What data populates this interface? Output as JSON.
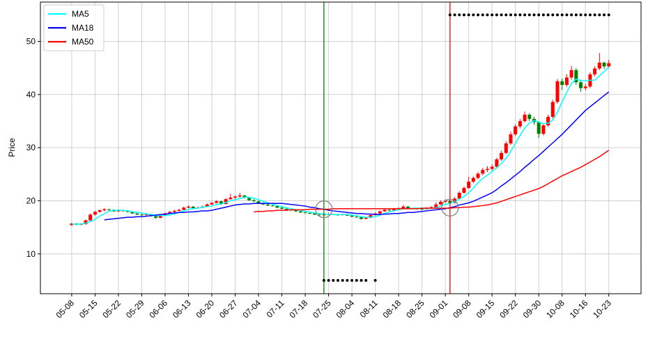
{
  "chart_data": {
    "type": "candlestick",
    "y_label": "Price",
    "ylim": [
      2.5,
      57.4
    ],
    "yticks": [
      10,
      20,
      30,
      40,
      50
    ],
    "xlim": [
      -6.7,
      121.9
    ],
    "grid": true,
    "legend": "upper left",
    "up_color": "#ff0000",
    "down_color": "#008000",
    "categories": [
      "05-08",
      null,
      null,
      null,
      null,
      "05-15",
      null,
      null,
      null,
      null,
      "05-22",
      null,
      null,
      null,
      null,
      "05-29",
      null,
      null,
      null,
      null,
      "06-06",
      null,
      null,
      null,
      null,
      "06-13",
      null,
      null,
      null,
      null,
      "06-20",
      null,
      null,
      null,
      null,
      "06-27",
      null,
      null,
      null,
      null,
      "07-04",
      null,
      null,
      null,
      null,
      "07-11",
      null,
      null,
      null,
      null,
      "07-18",
      null,
      null,
      null,
      null,
      "07-25",
      null,
      null,
      null,
      null,
      "08-04",
      null,
      null,
      null,
      null,
      "08-11",
      null,
      null,
      null,
      null,
      "08-18",
      null,
      null,
      null,
      null,
      "08-25",
      null,
      null,
      null,
      null,
      "09-01",
      null,
      null,
      null,
      null,
      "09-08",
      null,
      null,
      null,
      null,
      "09-15",
      null,
      null,
      null,
      null,
      "09-22",
      null,
      null,
      null,
      null,
      "09-30",
      null,
      null,
      null,
      null,
      "10-08",
      null,
      null,
      null,
      null,
      "10-16",
      null,
      null,
      null,
      null,
      "10-23"
    ],
    "open": [
      15.4,
      15.7,
      15.5,
      15.6,
      16.3,
      17.4,
      17.9,
      18.2,
      18.4,
      18.3,
      18.0,
      18.2,
      18.1,
      17.9,
      17.6,
      17.4,
      17.3,
      17.5,
      17.1,
      16.8,
      17.2,
      17.6,
      17.9,
      18.1,
      18.3,
      18.7,
      18.9,
      18.6,
      18.7,
      18.9,
      19.3,
      19.6,
      19.9,
      19.4,
      20.3,
      20.6,
      20.8,
      21.0,
      20.6,
      20.1,
      19.9,
      19.6,
      19.3,
      19.1,
      19.0,
      18.7,
      18.5,
      18.3,
      18.2,
      18.0,
      17.8,
      17.7,
      17.6,
      17.4,
      17.3,
      17.4,
      17.5,
      17.4,
      17.3,
      17.5,
      17.2,
      17.0,
      16.9,
      16.6,
      16.8,
      17.3,
      17.6,
      18.0,
      18.3,
      18.2,
      18.4,
      18.6,
      18.9,
      18.5,
      18.6,
      18.5,
      18.4,
      18.6,
      18.8,
      19.3,
      19.8,
      20.0,
      19.6,
      20.4,
      21.5,
      22.4,
      23.6,
      24.3,
      25.1,
      25.8,
      26.0,
      26.4,
      27.8,
      29.0,
      30.8,
      32.5,
      34.0,
      35.0,
      36.2,
      35.4,
      34.8,
      32.6,
      34.2,
      35.8,
      38.6,
      42.5,
      41.8,
      43.2,
      44.6,
      42.3,
      41.2,
      41.5,
      43.8,
      44.9,
      46.0,
      45.3
    ],
    "high": [
      15.9,
      15.8,
      15.8,
      16.5,
      17.6,
      18.1,
      18.4,
      18.6,
      18.5,
      18.4,
      18.4,
      18.3,
      18.2,
      18.0,
      17.7,
      17.6,
      17.7,
      17.6,
      17.2,
      17.3,
      17.8,
      18.1,
      18.3,
      18.5,
      18.9,
      19.1,
      19.0,
      18.9,
      19.1,
      19.5,
      19.8,
      20.1,
      20.0,
      20.5,
      21.3,
      21.0,
      21.5,
      21.1,
      20.7,
      20.3,
      20.0,
      19.7,
      19.5,
      19.3,
      19.1,
      18.8,
      18.6,
      18.5,
      18.3,
      18.1,
      17.9,
      17.8,
      17.7,
      17.5,
      17.6,
      17.7,
      17.6,
      17.5,
      17.6,
      17.6,
      17.3,
      17.1,
      17.0,
      17.0,
      17.5,
      17.8,
      18.2,
      18.5,
      18.4,
      18.6,
      18.8,
      19.2,
      19.0,
      18.7,
      18.7,
      18.6,
      18.8,
      19.0,
      19.7,
      20.1,
      20.3,
      20.2,
      20.7,
      21.8,
      22.7,
      24.5,
      24.6,
      25.4,
      26.2,
      26.5,
      26.8,
      28.1,
      29.4,
      31.2,
      33.0,
      34.4,
      35.4,
      36.8,
      36.5,
      35.8,
      35.0,
      34.6,
      36.2,
      39.0,
      42.9,
      43.0,
      43.8,
      45.4,
      45.0,
      42.8,
      42.0,
      44.2,
      45.3,
      47.8,
      46.2,
      46.5
    ],
    "low": [
      15.3,
      15.4,
      15.4,
      15.5,
      16.2,
      17.2,
      17.8,
      18.0,
      18.1,
      17.9,
      17.9,
      17.9,
      17.8,
      17.5,
      17.3,
      17.2,
      17.2,
      17.0,
      16.6,
      16.7,
      17.1,
      17.5,
      17.8,
      18.0,
      18.2,
      18.6,
      18.5,
      18.5,
      18.6,
      18.8,
      19.2,
      19.5,
      19.2,
      19.3,
      20.2,
      20.3,
      20.6,
      20.4,
      20.0,
      19.8,
      19.4,
      19.2,
      19.0,
      18.9,
      18.6,
      18.4,
      18.2,
      18.1,
      17.9,
      17.7,
      17.6,
      17.5,
      17.3,
      17.2,
      17.2,
      17.3,
      17.3,
      17.2,
      17.2,
      17.1,
      16.9,
      16.8,
      16.4,
      16.5,
      16.7,
      17.2,
      17.5,
      17.9,
      18.0,
      18.1,
      18.3,
      18.5,
      18.4,
      18.4,
      18.3,
      18.2,
      18.3,
      18.5,
      18.7,
      19.2,
      19.6,
      19.3,
      19.5,
      20.3,
      21.3,
      22.2,
      23.3,
      24.0,
      24.8,
      25.4,
      25.7,
      26.2,
      27.5,
      28.8,
      30.5,
      32.2,
      33.6,
      34.7,
      35.0,
      34.3,
      31.8,
      32.3,
      33.9,
      35.5,
      38.3,
      40.8,
      41.5,
      42.8,
      41.8,
      40.5,
      40.8,
      41.2,
      43.4,
      44.6,
      44.8,
      45.0
    ],
    "close": [
      15.7,
      15.5,
      15.6,
      16.3,
      17.4,
      17.9,
      18.2,
      18.4,
      18.3,
      18.0,
      18.2,
      18.1,
      17.9,
      17.6,
      17.4,
      17.3,
      17.5,
      17.1,
      16.8,
      17.2,
      17.6,
      17.9,
      18.1,
      18.3,
      18.7,
      18.9,
      18.6,
      18.7,
      18.9,
      19.3,
      19.6,
      19.9,
      19.4,
      20.3,
      20.6,
      20.8,
      21.0,
      20.6,
      20.1,
      19.9,
      19.6,
      19.3,
      19.1,
      19.0,
      18.7,
      18.5,
      18.3,
      18.2,
      18.0,
      17.8,
      17.7,
      17.6,
      17.4,
      17.3,
      17.4,
      17.5,
      17.4,
      17.3,
      17.5,
      17.2,
      17.0,
      16.9,
      16.6,
      16.8,
      17.3,
      17.6,
      18.0,
      18.3,
      18.2,
      18.4,
      18.6,
      18.9,
      18.5,
      18.6,
      18.5,
      18.4,
      18.6,
      18.8,
      19.3,
      19.8,
      20.0,
      19.6,
      20.4,
      21.5,
      22.4,
      23.6,
      24.3,
      25.1,
      25.8,
      26.0,
      26.4,
      27.8,
      29.0,
      30.8,
      32.5,
      34.0,
      35.0,
      36.2,
      35.4,
      34.8,
      32.6,
      34.2,
      35.8,
      38.6,
      42.5,
      41.8,
      43.2,
      44.6,
      42.3,
      41.2,
      41.5,
      43.8,
      44.9,
      46.0,
      45.3,
      45.9
    ],
    "series": [
      {
        "name": "MA5",
        "color": "#00ffff",
        "values": [
          15.6,
          15.6,
          15.6,
          15.8,
          16.1,
          16.5,
          17.1,
          17.6,
          18.0,
          18.2,
          18.2,
          18.2,
          18.1,
          17.9,
          17.8,
          17.7,
          17.5,
          17.4,
          17.2,
          17.2,
          17.2,
          17.3,
          17.5,
          17.8,
          18.1,
          18.4,
          18.5,
          18.6,
          18.8,
          18.9,
          19.0,
          19.3,
          19.4,
          19.7,
          20.0,
          20.2,
          20.4,
          20.7,
          20.6,
          20.5,
          20.2,
          19.9,
          19.6,
          19.4,
          19.1,
          18.9,
          18.7,
          18.5,
          18.3,
          18.2,
          18.0,
          17.9,
          17.7,
          17.6,
          17.5,
          17.4,
          17.4,
          17.4,
          17.4,
          17.4,
          17.3,
          17.2,
          17.0,
          16.9,
          16.9,
          17.0,
          17.3,
          17.6,
          17.9,
          18.1,
          18.3,
          18.5,
          18.5,
          18.6,
          18.6,
          18.6,
          18.5,
          18.6,
          18.7,
          19.0,
          19.3,
          19.5,
          19.8,
          20.3,
          20.8,
          21.5,
          22.4,
          23.4,
          24.2,
          24.8,
          25.5,
          26.2,
          27.0,
          28.0,
          29.3,
          30.8,
          32.3,
          33.7,
          34.6,
          35.1,
          34.8,
          34.5,
          34.6,
          35.2,
          36.7,
          38.6,
          40.4,
          42.1,
          42.9,
          42.6,
          42.6,
          42.7,
          42.7,
          43.5,
          44.3,
          45.2
        ]
      },
      {
        "name": "MA18",
        "color": "#0000ff",
        "values": [
          null,
          null,
          null,
          null,
          null,
          null,
          null,
          16.4,
          16.5,
          16.6,
          16.7,
          16.8,
          16.9,
          16.9,
          17.0,
          17.0,
          17.1,
          17.2,
          17.3,
          17.4,
          17.5,
          17.6,
          17.7,
          17.8,
          17.8,
          17.9,
          17.9,
          18.0,
          18.1,
          18.1,
          18.2,
          18.4,
          18.6,
          18.8,
          19.0,
          19.2,
          19.3,
          19.4,
          19.4,
          19.5,
          19.5,
          19.5,
          19.5,
          19.5,
          19.5,
          19.5,
          19.4,
          19.3,
          19.2,
          19.1,
          19.0,
          18.8,
          18.7,
          18.5,
          18.4,
          18.2,
          18.1,
          18.0,
          17.9,
          17.8,
          17.7,
          17.6,
          17.6,
          17.5,
          17.5,
          17.4,
          17.4,
          17.5,
          17.5,
          17.6,
          17.6,
          17.7,
          17.8,
          17.8,
          17.9,
          18.0,
          18.1,
          18.2,
          18.3,
          18.4,
          18.5,
          18.7,
          18.9,
          19.2,
          19.4,
          19.6,
          19.9,
          20.3,
          20.7,
          21.1,
          21.5,
          22.1,
          22.8,
          23.4,
          24.1,
          24.8,
          25.5,
          26.3,
          27.0,
          27.8,
          28.5,
          29.3,
          30.1,
          30.9,
          31.7,
          32.5,
          33.4,
          34.3,
          35.2,
          36.1,
          37.0,
          37.7,
          38.4,
          39.1,
          39.8,
          40.5
        ]
      },
      {
        "name": "MA50",
        "color": "#ff0000",
        "values": [
          null,
          null,
          null,
          null,
          null,
          null,
          null,
          null,
          null,
          null,
          null,
          null,
          null,
          null,
          null,
          null,
          null,
          null,
          null,
          null,
          null,
          null,
          null,
          null,
          null,
          null,
          null,
          null,
          null,
          null,
          null,
          null,
          null,
          null,
          null,
          null,
          null,
          null,
          null,
          17.9,
          18.0,
          18.0,
          18.1,
          18.1,
          18.2,
          18.2,
          18.2,
          18.3,
          18.3,
          18.3,
          18.3,
          18.4,
          18.4,
          18.4,
          18.4,
          18.4,
          18.5,
          18.5,
          18.5,
          18.5,
          18.5,
          18.5,
          18.5,
          18.5,
          18.5,
          18.5,
          18.5,
          18.5,
          18.5,
          18.5,
          18.5,
          18.5,
          18.5,
          18.5,
          18.5,
          18.6,
          18.6,
          18.6,
          18.6,
          18.6,
          18.6,
          18.6,
          18.7,
          18.7,
          18.8,
          18.8,
          18.9,
          19.0,
          19.1,
          19.2,
          19.4,
          19.6,
          19.9,
          20.2,
          20.5,
          20.8,
          21.1,
          21.4,
          21.7,
          22.0,
          22.3,
          22.7,
          23.2,
          23.7,
          24.2,
          24.7,
          25.1,
          25.5,
          25.9,
          26.3,
          26.8,
          27.3,
          27.8,
          28.3,
          28.9,
          29.5
        ]
      }
    ],
    "upper_markers": {
      "color": "#000000",
      "x": [
        81,
        82,
        83,
        84,
        85,
        86,
        87,
        88,
        89,
        90,
        91,
        92,
        93,
        94,
        95,
        96,
        97,
        98,
        99,
        100,
        101,
        102,
        103,
        104,
        105,
        106,
        107,
        108,
        109,
        110,
        111,
        112,
        113,
        114,
        115
      ],
      "y": [
        55,
        55,
        55,
        55,
        55,
        55,
        55,
        55,
        55,
        55,
        55,
        55,
        55,
        55,
        55,
        55,
        55,
        55,
        55,
        55,
        55,
        55,
        55,
        55,
        55,
        55,
        55,
        55,
        55,
        55,
        55,
        55,
        55,
        55,
        55
      ]
    },
    "lower_markers": {
      "color": "#000000",
      "x": [
        54,
        55,
        56,
        57,
        58,
        59,
        60,
        61,
        62,
        63,
        65
      ],
      "y": [
        5,
        5,
        5,
        5,
        5,
        5,
        5,
        5,
        5,
        5,
        5
      ]
    },
    "vlines": [
      {
        "x": 54,
        "color": "#008000"
      },
      {
        "x": 81,
        "color": "#ff0000"
      }
    ],
    "circles": [
      {
        "x": 54,
        "y": 18.4
      },
      {
        "x": 81,
        "y": 18.7
      }
    ]
  }
}
